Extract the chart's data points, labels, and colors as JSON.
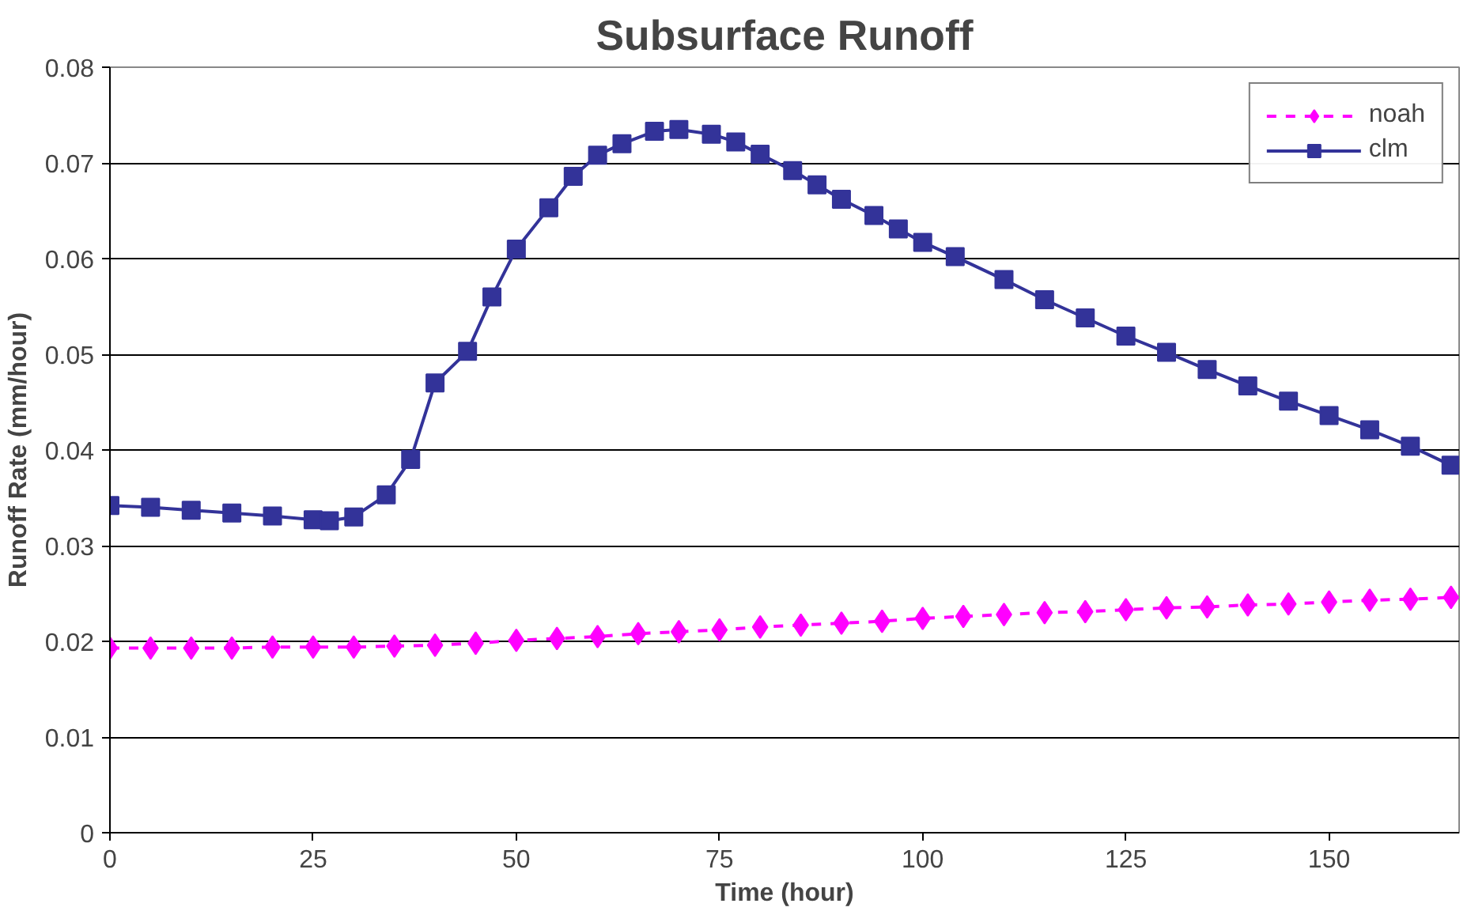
{
  "chart_data": {
    "type": "line",
    "title": "Subsurface Runoff",
    "xlabel": "Time (hour)",
    "ylabel": "Runoff Rate (mm/hour)",
    "xlim": [
      0,
      166
    ],
    "xticks": [
      0,
      25,
      50,
      75,
      100,
      125,
      150
    ],
    "ylim": [
      0,
      0.08
    ],
    "yticks": [
      0,
      0.01,
      0.02,
      0.03,
      0.04,
      0.05,
      0.06,
      0.07,
      0.08
    ],
    "grid": "y",
    "legend": "top right",
    "series": [
      {
        "name": "noah",
        "color": "#ff00ff",
        "marker": "diamond",
        "line_style": "dashed",
        "x": [
          0,
          5,
          10,
          15,
          20,
          25,
          30,
          35,
          40,
          45,
          50,
          55,
          60,
          65,
          70,
          75,
          80,
          85,
          90,
          95,
          100,
          105,
          110,
          115,
          120,
          125,
          130,
          135,
          140,
          145,
          150,
          155,
          160,
          165
        ],
        "values": [
          0.0193,
          0.0193,
          0.0193,
          0.0193,
          0.0194,
          0.0194,
          0.0194,
          0.0195,
          0.0196,
          0.0198,
          0.0201,
          0.0203,
          0.0205,
          0.0208,
          0.021,
          0.0212,
          0.0215,
          0.0217,
          0.0219,
          0.0221,
          0.0224,
          0.0226,
          0.0228,
          0.023,
          0.0231,
          0.0233,
          0.0235,
          0.0236,
          0.0238,
          0.0239,
          0.0241,
          0.0243,
          0.0244,
          0.0246
        ]
      },
      {
        "name": "clm",
        "color": "#333399",
        "marker": "square",
        "line_style": "solid",
        "x": [
          0,
          5,
          10,
          15,
          20,
          25,
          27,
          30,
          34,
          37,
          40,
          44,
          47,
          50,
          54,
          57,
          60,
          63,
          67,
          70,
          74,
          77,
          80,
          84,
          87,
          90,
          94,
          97,
          100,
          104,
          110,
          115,
          120,
          125,
          130,
          135,
          140,
          145,
          150,
          155,
          160,
          165
        ],
        "values": [
          0.0342,
          0.034,
          0.0337,
          0.0334,
          0.0331,
          0.0327,
          0.0326,
          0.033,
          0.0353,
          0.039,
          0.047,
          0.0503,
          0.056,
          0.061,
          0.0653,
          0.0686,
          0.0708,
          0.072,
          0.0733,
          0.0735,
          0.073,
          0.0722,
          0.0709,
          0.0692,
          0.0677,
          0.0662,
          0.0645,
          0.0631,
          0.0617,
          0.0602,
          0.0578,
          0.0557,
          0.0538,
          0.0519,
          0.0502,
          0.0484,
          0.0467,
          0.0451,
          0.0436,
          0.0421,
          0.0404,
          0.0384
        ]
      }
    ]
  }
}
